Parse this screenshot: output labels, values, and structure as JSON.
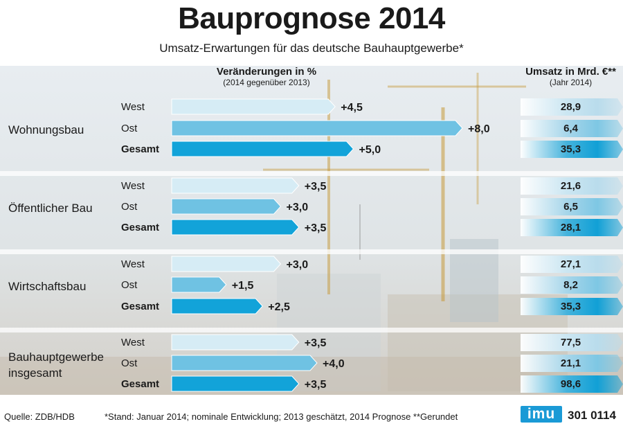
{
  "title": "Bauprognose 2014",
  "subtitle": "Umsatz-Erwartungen für das deutsche Bauhauptgewerbe*",
  "header_left": {
    "main": "Veränderungen in %",
    "sub": "(2014 gegenüber 2013)"
  },
  "header_right": {
    "main": "Umsatz in Mrd. €**",
    "sub": "(Jahr 2014)"
  },
  "footer": {
    "source": "Quelle: ZDB/HDB",
    "note": "*Stand: Januar 2014; nominale Entwicklung; 2013 geschätzt, 2014 Prognose    **Gerundet",
    "logo": "imu",
    "code": "301 0114"
  },
  "colors": {
    "west": "#d6ecf5",
    "ost": "#6fc2e3",
    "gesamt": "#12a3d9"
  },
  "chart_data": {
    "type": "bar",
    "orientation": "horizontal",
    "x_unit": "%",
    "groups": [
      {
        "name": "Wohnungsbau",
        "rows": [
          {
            "label": "West",
            "change": 4.5,
            "change_label": "+4,5",
            "revenue": "28,9"
          },
          {
            "label": "Ost",
            "change": 8.0,
            "change_label": "+8,0",
            "revenue": "6,4"
          },
          {
            "label": "Gesamt",
            "change": 5.0,
            "change_label": "+5,0",
            "revenue": "35,3"
          }
        ]
      },
      {
        "name": "Öffentlicher Bau",
        "rows": [
          {
            "label": "West",
            "change": 3.5,
            "change_label": "+3,5",
            "revenue": "21,6"
          },
          {
            "label": "Ost",
            "change": 3.0,
            "change_label": "+3,0",
            "revenue": "6,5"
          },
          {
            "label": "Gesamt",
            "change": 3.5,
            "change_label": "+3,5",
            "revenue": "28,1"
          }
        ]
      },
      {
        "name": "Wirtschaftsbau",
        "rows": [
          {
            "label": "West",
            "change": 3.0,
            "change_label": "+3,0",
            "revenue": "27,1"
          },
          {
            "label": "Ost",
            "change": 1.5,
            "change_label": "+1,5",
            "revenue": "8,2"
          },
          {
            "label": "Gesamt",
            "change": 2.5,
            "change_label": "+2,5",
            "revenue": "35,3"
          }
        ]
      },
      {
        "name": "Bauhauptgewerbe insgesamt",
        "rows": [
          {
            "label": "West",
            "change": 3.5,
            "change_label": "+3,5",
            "revenue": "77,5"
          },
          {
            "label": "Ost",
            "change": 4.0,
            "change_label": "+4,0",
            "revenue": "21,1"
          },
          {
            "label": "Gesamt",
            "change": 3.5,
            "change_label": "+3,5",
            "revenue": "98,6"
          }
        ]
      }
    ]
  }
}
